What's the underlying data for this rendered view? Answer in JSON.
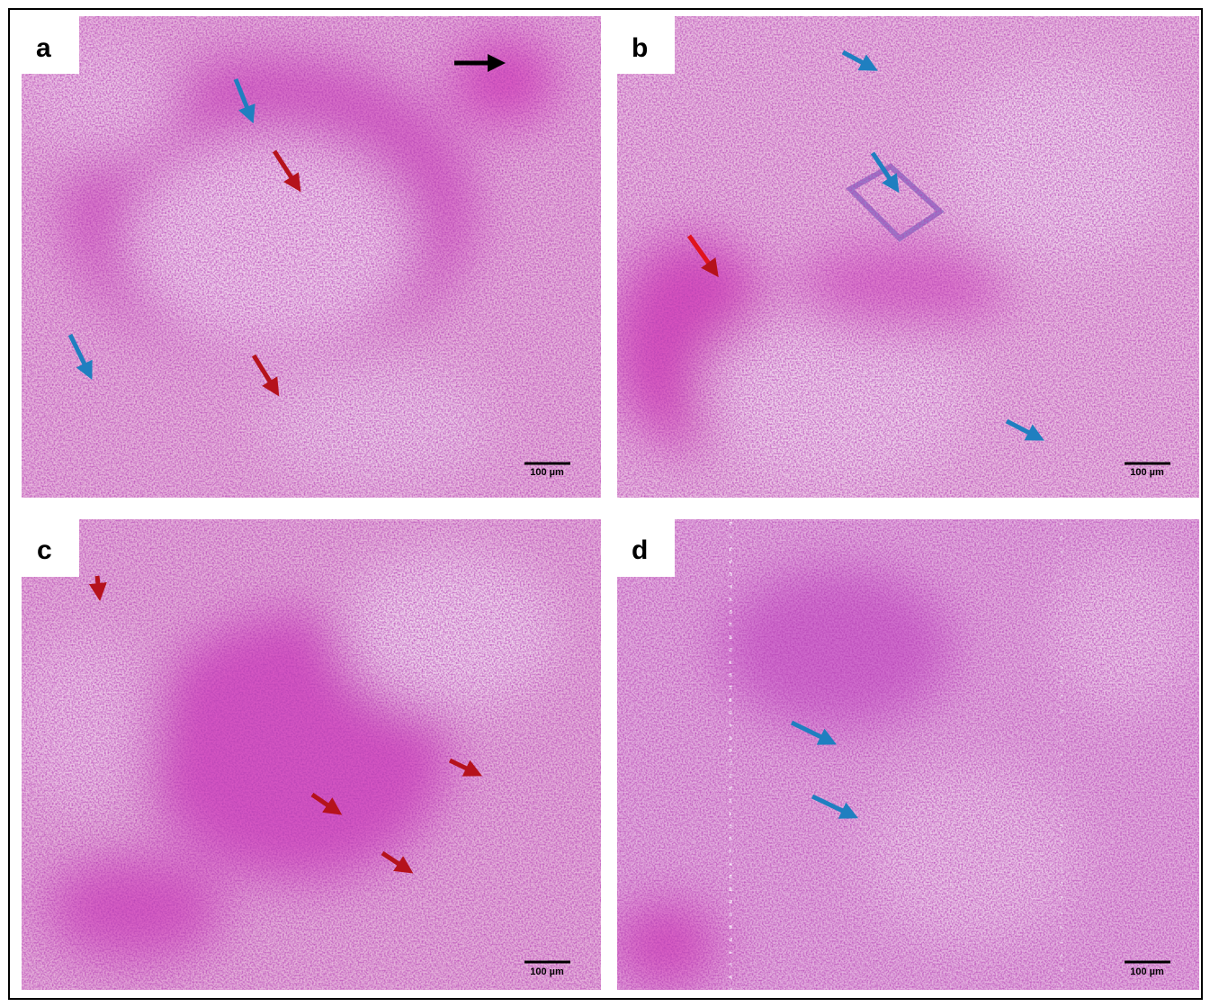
{
  "panels": [
    {
      "label": "a",
      "scale_bar": "100 µm"
    },
    {
      "label": "b",
      "scale_bar": "100 µm"
    },
    {
      "label": "c",
      "scale_bar": "100 µm"
    },
    {
      "label": "d",
      "scale_bar": "100 µm"
    }
  ]
}
